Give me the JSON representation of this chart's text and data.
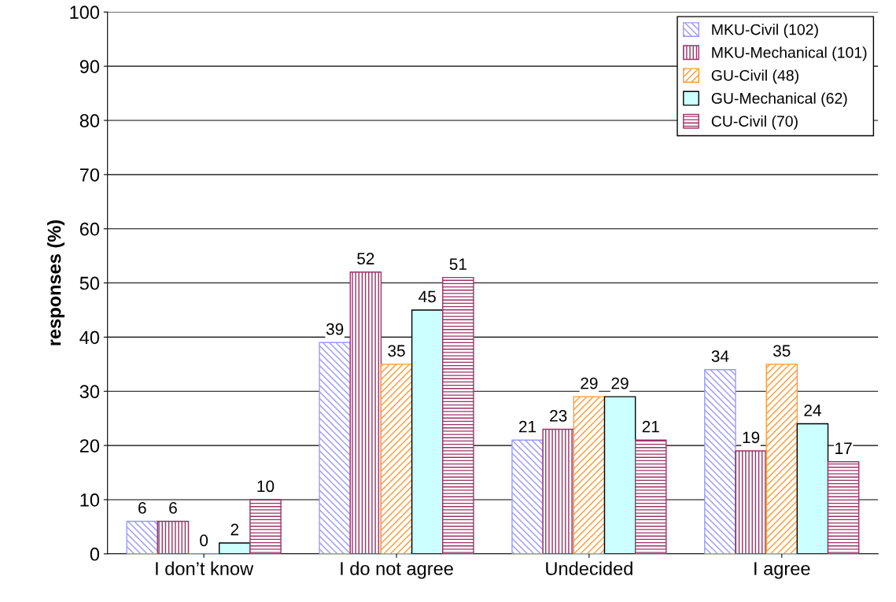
{
  "chart_data": {
    "type": "bar",
    "ylabel": "responses (%)",
    "categories": [
      "I don’t know",
      "I do not agree",
      "Undecided",
      "I agree"
    ],
    "series": [
      {
        "name": "MKU-Civil (102)",
        "color": "#9999ff",
        "values": [
          6,
          39,
          21,
          34
        ]
      },
      {
        "name": "MKU-Mechanical (101)",
        "color": "#993366",
        "values": [
          6,
          52,
          23,
          19
        ]
      },
      {
        "name": "GU-Civil (48)",
        "color": "#ff9933",
        "values": [
          0,
          35,
          29,
          35
        ]
      },
      {
        "name": "GU-Mechanical (62)",
        "color": "#ccffff",
        "values": [
          2,
          45,
          29,
          24
        ]
      },
      {
        "name": "CU-Civil (70)",
        "color": "#993366",
        "values": [
          10,
          51,
          21,
          17
        ]
      }
    ],
    "ylim": [
      0,
      100
    ],
    "yticks": [
      0,
      10,
      20,
      30,
      40,
      50,
      60,
      70,
      80,
      90,
      100
    ],
    "grid": "y",
    "legend": "top right",
    "data_labels": true
  }
}
